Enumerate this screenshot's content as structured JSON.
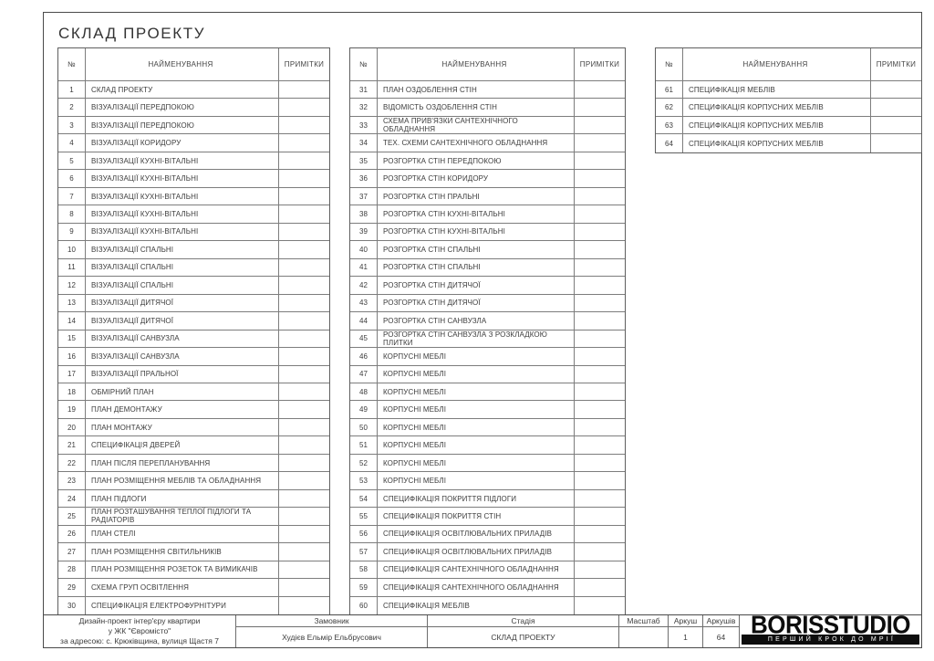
{
  "title": "СКЛАД ПРОЕКТУ",
  "table_header": {
    "num": "№",
    "name": "НАЙМЕНУВАННЯ",
    "notes": "ПРИМІТКИ"
  },
  "tables": {
    "first": [
      {
        "num": "1",
        "name": "СКЛАД ПРОЕКТУ",
        "notes": ""
      },
      {
        "num": "2",
        "name": "ВІЗУАЛІЗАЦІЇ ПЕРЕДПОКОЮ",
        "notes": ""
      },
      {
        "num": "3",
        "name": "ВІЗУАЛІЗАЦІЇ ПЕРЕДПОКОЮ",
        "notes": ""
      },
      {
        "num": "4",
        "name": "ВІЗУАЛІЗАЦІЇ КОРИДОРУ",
        "notes": ""
      },
      {
        "num": "5",
        "name": "ВІЗУАЛІЗАЦІЇ КУХНІ-ВІТАЛЬНІ",
        "notes": ""
      },
      {
        "num": "6",
        "name": "ВІЗУАЛІЗАЦІЇ КУХНІ-ВІТАЛЬНІ",
        "notes": ""
      },
      {
        "num": "7",
        "name": "ВІЗУАЛІЗАЦІЇ КУХНІ-ВІТАЛЬНІ",
        "notes": ""
      },
      {
        "num": "8",
        "name": "ВІЗУАЛІЗАЦІЇ КУХНІ-ВІТАЛЬНІ",
        "notes": ""
      },
      {
        "num": "9",
        "name": "ВІЗУАЛІЗАЦІЇ КУХНІ-ВІТАЛЬНІ",
        "notes": ""
      },
      {
        "num": "10",
        "name": "ВІЗУАЛІЗАЦІЇ СПАЛЬНІ",
        "notes": ""
      },
      {
        "num": "11",
        "name": "ВІЗУАЛІЗАЦІЇ СПАЛЬНІ",
        "notes": ""
      },
      {
        "num": "12",
        "name": "ВІЗУАЛІЗАЦІЇ СПАЛЬНІ",
        "notes": ""
      },
      {
        "num": "13",
        "name": "ВІЗУАЛІЗАЦІЇ ДИТЯЧОЇ",
        "notes": ""
      },
      {
        "num": "14",
        "name": "ВІЗУАЛІЗАЦІЇ ДИТЯЧОЇ",
        "notes": ""
      },
      {
        "num": "15",
        "name": "ВІЗУАЛІЗАЦІЇ САНВУЗЛА",
        "notes": ""
      },
      {
        "num": "16",
        "name": "ВІЗУАЛІЗАЦІЇ САНВУЗЛА",
        "notes": ""
      },
      {
        "num": "17",
        "name": "ВІЗУАЛІЗАЦІЇ ПРАЛЬНОЇ",
        "notes": ""
      },
      {
        "num": "18",
        "name": "ОБМІРНИЙ ПЛАН",
        "notes": ""
      },
      {
        "num": "19",
        "name": "ПЛАН ДЕМОНТАЖУ",
        "notes": ""
      },
      {
        "num": "20",
        "name": "ПЛАН МОНТАЖУ",
        "notes": ""
      },
      {
        "num": "21",
        "name": "СПЕЦИФІКАЦІЯ ДВЕРЕЙ",
        "notes": ""
      },
      {
        "num": "22",
        "name": "ПЛАН ПІСЛЯ ПЕРЕПЛАНУВАННЯ",
        "notes": ""
      },
      {
        "num": "23",
        "name": "ПЛАН РОЗМІЩЕННЯ МЕБЛІВ ТА ОБЛАДНАННЯ",
        "notes": ""
      },
      {
        "num": "24",
        "name": "ПЛАН ПІДЛОГИ",
        "notes": ""
      },
      {
        "num": "25",
        "name": "ПЛАН РОЗТАШУВАННЯ ТЕПЛОЇ ПІДЛОГИ ТА\nРАДІАТОРІВ",
        "notes": ""
      },
      {
        "num": "26",
        "name": "ПЛАН СТЕЛІ",
        "notes": ""
      },
      {
        "num": "27",
        "name": "ПЛАН РОЗМІЩЕННЯ СВІТИЛЬНИКІВ",
        "notes": ""
      },
      {
        "num": "28",
        "name": "ПЛАН РОЗМІЩЕННЯ РОЗЕТОК ТА ВИМИКАЧІВ",
        "notes": ""
      },
      {
        "num": "29",
        "name": "СХЕМА ГРУП ОСВІТЛЕННЯ",
        "notes": ""
      },
      {
        "num": "30",
        "name": "СПЕЦИФІКАЦІЯ ЕЛЕКТРОФУРНІТУРИ",
        "notes": ""
      }
    ],
    "second": [
      {
        "num": "31",
        "name": "ПЛАН ОЗДОБЛЕННЯ СТІН",
        "notes": ""
      },
      {
        "num": "32",
        "name": "ВІДОМІСТЬ ОЗДОБЛЕННЯ СТІН",
        "notes": ""
      },
      {
        "num": "33",
        "name": "СХЕМА ПРИВ'ЯЗКИ САНТЕХНІЧНОГО ОБЛАДНАННЯ",
        "notes": ""
      },
      {
        "num": "34",
        "name": "ТЕХ. СХЕМИ САНТЕХНІЧНОГО ОБЛАДНАННЯ",
        "notes": ""
      },
      {
        "num": "35",
        "name": "РОЗГОРТКА СТІН ПЕРЕДПОКОЮ",
        "notes": ""
      },
      {
        "num": "36",
        "name": "РОЗГОРТКА СТІН КОРИДОРУ",
        "notes": ""
      },
      {
        "num": "37",
        "name": "РОЗГОРТКА СТІН ПРАЛЬНІ",
        "notes": ""
      },
      {
        "num": "38",
        "name": "РОЗГОРТКА СТІН КУХНІ-ВІТАЛЬНІ",
        "notes": ""
      },
      {
        "num": "39",
        "name": "РОЗГОРТКА СТІН КУХНІ-ВІТАЛЬНІ",
        "notes": ""
      },
      {
        "num": "40",
        "name": "РОЗГОРТКА СТІН СПАЛЬНІ",
        "notes": ""
      },
      {
        "num": "41",
        "name": "РОЗГОРТКА СТІН СПАЛЬНІ",
        "notes": ""
      },
      {
        "num": "42",
        "name": "РОЗГОРТКА СТІН ДИТЯЧОЇ",
        "notes": ""
      },
      {
        "num": "43",
        "name": "РОЗГОРТКА СТІН ДИТЯЧОЇ",
        "notes": ""
      },
      {
        "num": "44",
        "name": "РОЗГОРТКА СТІН САНВУЗЛА",
        "notes": ""
      },
      {
        "num": "45",
        "name": "РОЗГОРТКА СТІН САНВУЗЛА З РОЗКЛАДКОЮ\nПЛИТКИ",
        "notes": ""
      },
      {
        "num": "46",
        "name": "КОРПУСНІ МЕБЛІ",
        "notes": ""
      },
      {
        "num": "47",
        "name": "КОРПУСНІ МЕБЛІ",
        "notes": ""
      },
      {
        "num": "48",
        "name": "КОРПУСНІ МЕБЛІ",
        "notes": ""
      },
      {
        "num": "49",
        "name": "КОРПУСНІ МЕБЛІ",
        "notes": ""
      },
      {
        "num": "50",
        "name": "КОРПУСНІ МЕБЛІ",
        "notes": ""
      },
      {
        "num": "51",
        "name": "КОРПУСНІ МЕБЛІ",
        "notes": ""
      },
      {
        "num": "52",
        "name": "КОРПУСНІ МЕБЛІ",
        "notes": ""
      },
      {
        "num": "53",
        "name": "КОРПУСНІ МЕБЛІ",
        "notes": ""
      },
      {
        "num": "54",
        "name": "СПЕЦИФІКАЦІЯ ПОКРИТТЯ ПІДЛОГИ",
        "notes": ""
      },
      {
        "num": "55",
        "name": "СПЕЦИФІКАЦІЯ ПОКРИТТЯ СТІН",
        "notes": ""
      },
      {
        "num": "56",
        "name": "СПЕЦИФІКАЦІЯ ОСВІТЛЮВАЛЬНИХ ПРИЛАДІВ",
        "notes": ""
      },
      {
        "num": "57",
        "name": "СПЕЦИФІКАЦІЯ ОСВІТЛЮВАЛЬНИХ ПРИЛАДІВ",
        "notes": ""
      },
      {
        "num": "58",
        "name": "СПЕЦИФІКАЦІЯ САНТЕХНІЧНОГО ОБЛАДНАННЯ",
        "notes": ""
      },
      {
        "num": "59",
        "name": "СПЕЦИФІКАЦІЯ САНТЕХНІЧНОГО ОБЛАДНАННЯ",
        "notes": ""
      },
      {
        "num": "60",
        "name": "СПЕЦИФІКАЦІЯ МЕБЛІВ",
        "notes": ""
      }
    ],
    "third": [
      {
        "num": "61",
        "name": "СПЕЦИФІКАЦІЯ МЕБЛІВ",
        "notes": ""
      },
      {
        "num": "62",
        "name": "СПЕЦИФІКАЦІЯ КОРПУСНИХ МЕБЛІВ",
        "notes": ""
      },
      {
        "num": "63",
        "name": "СПЕЦИФІКАЦІЯ КОРПУСНИХ МЕБЛІВ",
        "notes": ""
      },
      {
        "num": "64",
        "name": "СПЕЦИФІКАЦІЯ КОРПУСНИХ МЕБЛІВ",
        "notes": ""
      }
    ]
  },
  "footer": {
    "project_lines": [
      "Дизайн-проект інтер'єру квартири",
      "у ЖК \"Євромісто\"",
      "за адресою: с. Крюківщина, вулиця Щастя 7"
    ],
    "customer_label": "Замовник",
    "customer_value": "Худієв Ельмір Ельбрусович",
    "stage_label": "Стадія",
    "stage_value": "СКЛАД ПРОЕКТУ",
    "scale_label": "Масштаб",
    "scale_value": "",
    "sheet_label": "Аркуш",
    "sheet_value": "1",
    "sheets_label": "Аркушів",
    "sheets_value": "64",
    "logo_text": "BORISSTUDIO",
    "logo_tagline": "ПЕРШИЙ КРОК ДО МРІЇ"
  },
  "colors": {
    "paper": "#ffffff",
    "text": "#3c3c3c",
    "frame_border": "#4a4a4a",
    "table_border": "#7d7d7d",
    "logo_black": "#0d0d0d",
    "logo_tagline_text": "#ffffff"
  }
}
